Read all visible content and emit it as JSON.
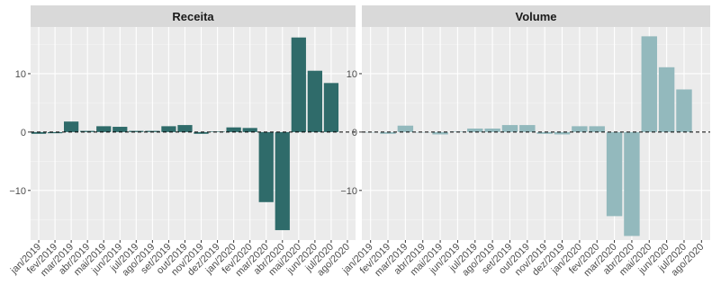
{
  "chart_data": [
    {
      "type": "bar",
      "title": "Receita",
      "color": "#2f6b6a",
      "ylim": [
        -18.5,
        18
      ],
      "yticks": [
        -10,
        0,
        10
      ],
      "reference_line": 0,
      "categories": [
        "jan/2019",
        "fev/2019",
        "mar/2019",
        "abr/2019",
        "mai/2019",
        "jun/2019",
        "jul/2019",
        "ago/2019",
        "set/2019",
        "out/2019",
        "nov/2019",
        "dez/2019",
        "jan/2020",
        "fev/2020",
        "mar/2020",
        "abr/2020",
        "mai/2020",
        "jun/2020",
        "jul/2020",
        "ago/2020"
      ],
      "values": [
        -0.3,
        -0.2,
        1.8,
        0.2,
        1.0,
        0.9,
        0.2,
        0.2,
        1.0,
        1.2,
        -0.3,
        0.1,
        0.8,
        0.7,
        -12.0,
        -16.8,
        16.2,
        10.5,
        8.4,
        null
      ]
    },
    {
      "type": "bar",
      "title": "Volume",
      "color": "#93b9bd",
      "ylim": [
        -18.5,
        18
      ],
      "yticks": [
        -10,
        0,
        10
      ],
      "reference_line": 0,
      "categories": [
        "jan/2019",
        "fev/2019",
        "mar/2019",
        "abr/2019",
        "mai/2019",
        "jun/2019",
        "jul/2019",
        "ago/2019",
        "set/2019",
        "out/2019",
        "nov/2019",
        "dez/2019",
        "jan/2020",
        "fev/2020",
        "mar/2020",
        "abr/2020",
        "mai/2020",
        "jun/2020",
        "jul/2020",
        "ago/2020"
      ],
      "values": [
        0.0,
        -0.3,
        1.1,
        0.0,
        -0.4,
        0.1,
        0.6,
        0.6,
        1.2,
        1.2,
        -0.3,
        -0.4,
        1.0,
        1.0,
        -14.4,
        -17.8,
        16.4,
        11.1,
        7.3,
        null
      ]
    }
  ]
}
